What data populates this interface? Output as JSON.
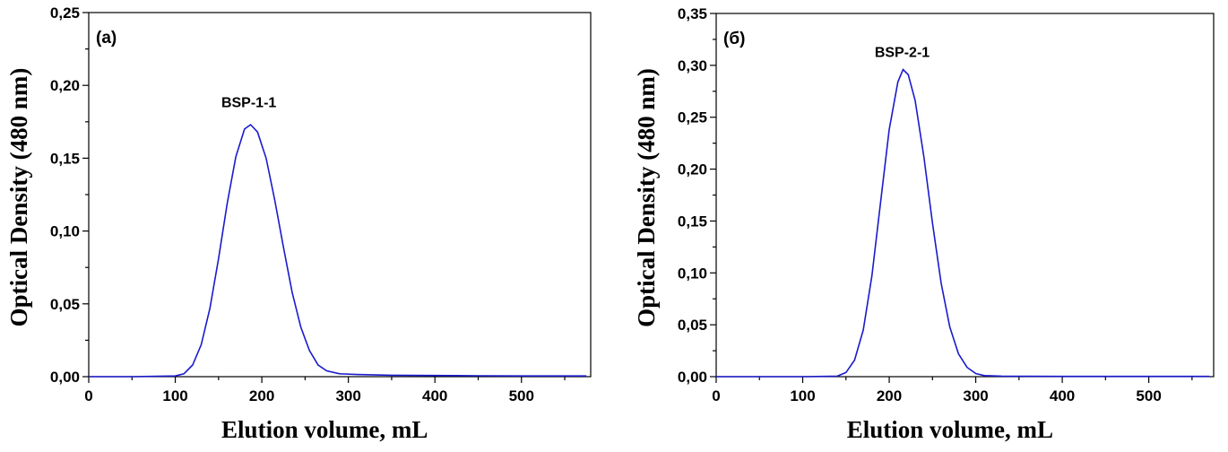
{
  "chart_data": [
    {
      "type": "line",
      "panel_label": "(a)",
      "xlabel": "Elution volume, mL",
      "ylabel": "Optical Density (480 nm)",
      "xlim": [
        0,
        580
      ],
      "ylim": [
        0,
        0.25
      ],
      "x_ticks": [
        0,
        100,
        200,
        300,
        400,
        500
      ],
      "x_tick_labels": [
        "0",
        "100",
        "200",
        "300",
        "400",
        "500"
      ],
      "y_ticks": [
        0,
        0.05,
        0.1,
        0.15,
        0.2,
        0.25
      ],
      "y_tick_labels": [
        "0,00",
        "0,05",
        "0,10",
        "0,15",
        "0,20",
        "0,25"
      ],
      "annotation": {
        "text": "BSP-1-1",
        "x": 185,
        "y": 0.185
      },
      "color": "#1a1acc",
      "series": [
        {
          "x": [
            0,
            50,
            100,
            110,
            120,
            130,
            140,
            150,
            160,
            170,
            180,
            187,
            195,
            205,
            215,
            225,
            235,
            245,
            255,
            265,
            275,
            290,
            310,
            350,
            400,
            450,
            500,
            575
          ],
          "y": [
            0.0,
            0.0,
            0.0005,
            0.002,
            0.008,
            0.022,
            0.047,
            0.081,
            0.119,
            0.151,
            0.17,
            0.173,
            0.168,
            0.15,
            0.121,
            0.089,
            0.058,
            0.034,
            0.018,
            0.008,
            0.004,
            0.002,
            0.0015,
            0.001,
            0.0008,
            0.0006,
            0.0005,
            0.0005
          ]
        }
      ]
    },
    {
      "type": "line",
      "panel_label": "(б)",
      "xlabel": "Elution volume, mL",
      "ylabel": "Optical Density (480 nm)",
      "xlim": [
        0,
        575
      ],
      "ylim": [
        0,
        0.35
      ],
      "x_ticks": [
        0,
        100,
        200,
        300,
        400,
        500
      ],
      "x_tick_labels": [
        "0",
        "100",
        "200",
        "300",
        "400",
        "500"
      ],
      "y_ticks": [
        0,
        0.05,
        0.1,
        0.15,
        0.2,
        0.25,
        0.3,
        0.35
      ],
      "y_tick_labels": [
        "0,00",
        "0,05",
        "0,10",
        "0,15",
        "0,20",
        "0,25",
        "0,30",
        "0,35"
      ],
      "annotation": {
        "text": "BSP-2-1",
        "x": 215,
        "y": 0.308
      },
      "color": "#1a1acc",
      "series": [
        {
          "x": [
            0,
            100,
            140,
            150,
            160,
            170,
            180,
            190,
            200,
            210,
            216,
            222,
            230,
            240,
            250,
            260,
            270,
            280,
            290,
            300,
            310,
            330,
            400,
            500,
            570
          ],
          "y": [
            0.0,
            0.0,
            0.0005,
            0.004,
            0.016,
            0.045,
            0.097,
            0.168,
            0.238,
            0.284,
            0.296,
            0.291,
            0.266,
            0.212,
            0.148,
            0.09,
            0.048,
            0.022,
            0.009,
            0.003,
            0.001,
            0.0005,
            0.0003,
            0.0003,
            0.0003
          ]
        }
      ]
    }
  ]
}
